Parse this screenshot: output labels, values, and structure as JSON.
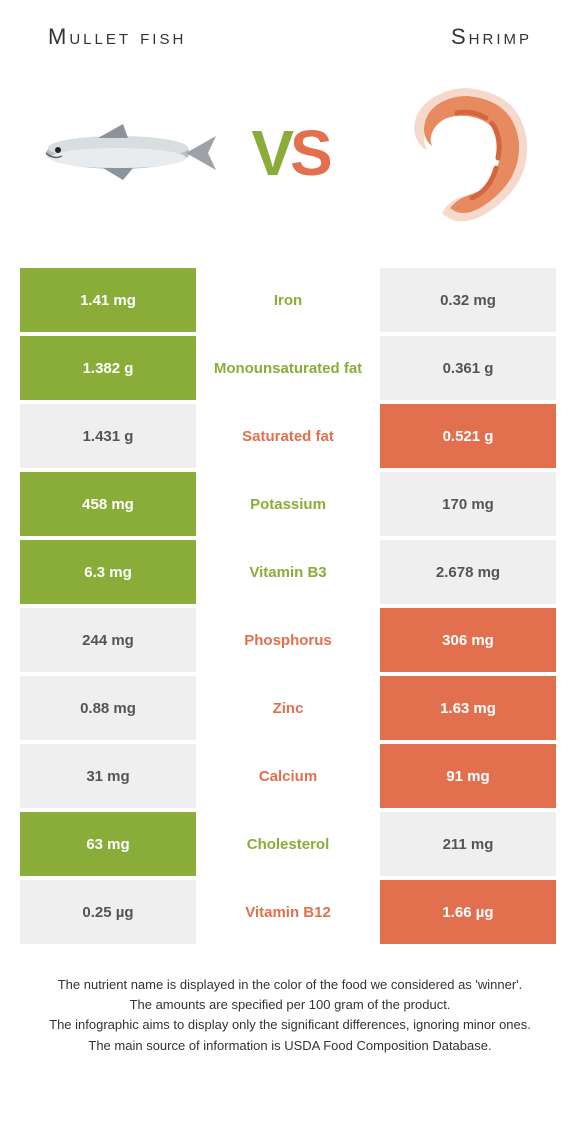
{
  "header": {
    "left": "Mullet fish",
    "right": "Shrimp"
  },
  "vs": {
    "v": "V",
    "s": "S"
  },
  "colors": {
    "green": "#8aad3a",
    "orange": "#e2704f",
    "loser_bg": "#efefef",
    "loser_text": "#555555",
    "white": "#ffffff"
  },
  "rows": [
    {
      "left": "1.41 mg",
      "label": "Iron",
      "right": "0.32 mg",
      "winner": "left"
    },
    {
      "left": "1.382 g",
      "label": "Monounsaturated fat",
      "right": "0.361 g",
      "winner": "left"
    },
    {
      "left": "1.431 g",
      "label": "Saturated fat",
      "right": "0.521 g",
      "winner": "right"
    },
    {
      "left": "458 mg",
      "label": "Potassium",
      "right": "170 mg",
      "winner": "left"
    },
    {
      "left": "6.3 mg",
      "label": "Vitamin B3",
      "right": "2.678 mg",
      "winner": "left"
    },
    {
      "left": "244 mg",
      "label": "Phosphorus",
      "right": "306 mg",
      "winner": "right"
    },
    {
      "left": "0.88 mg",
      "label": "Zinc",
      "right": "1.63 mg",
      "winner": "right"
    },
    {
      "left": "31 mg",
      "label": "Calcium",
      "right": "91 mg",
      "winner": "right"
    },
    {
      "left": "63 mg",
      "label": "Cholesterol",
      "right": "211 mg",
      "winner": "left"
    },
    {
      "left": "0.25 µg",
      "label": "Vitamin B12",
      "right": "1.66 µg",
      "winner": "right"
    }
  ],
  "footer": {
    "line1": "The nutrient name is displayed in the color of the food we considered as 'winner'.",
    "line2": "The amounts are specified per 100 gram of the product.",
    "line3": "The infographic aims to display only the significant differences, ignoring minor ones.",
    "line4": "The main source of information is USDA Food Composition Database."
  }
}
